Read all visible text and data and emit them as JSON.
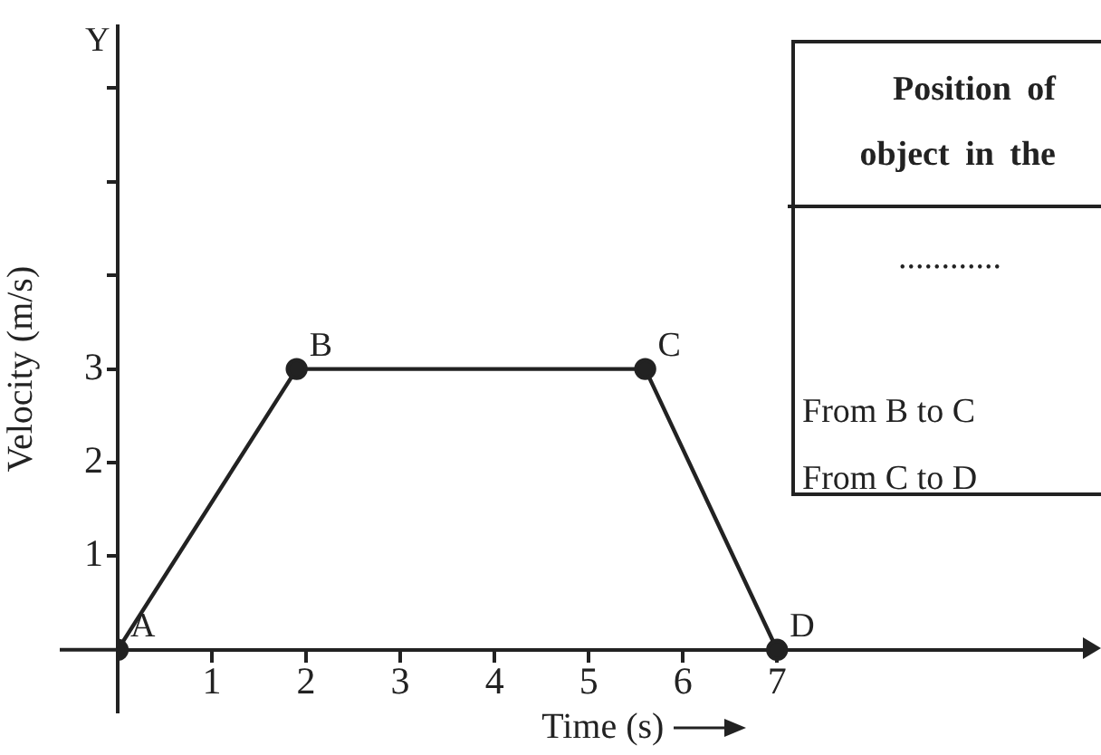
{
  "chart_data": {
    "type": "line",
    "xlabel": "Time (s)",
    "ylabel": "Velocity (m/s)",
    "x": [
      0,
      1.9,
      5.6,
      7
    ],
    "values": [
      0,
      3,
      3,
      0
    ],
    "color": "#222222",
    "marker": "circle",
    "line_style": "solid",
    "xlim": [
      0,
      10.3
    ],
    "ylim": [
      -0.66,
      6.66
    ],
    "xticks": [
      1,
      2,
      3,
      4,
      5,
      6,
      7
    ],
    "yticks": [
      1,
      2,
      3,
      {
        "value": 4,
        "label": null
      },
      {
        "value": 5,
        "label": null
      },
      {
        "value": 6,
        "label": null
      }
    ],
    "grid": false,
    "legend": false,
    "annotations": [
      {
        "text": "A",
        "x": 0,
        "y": 0
      },
      {
        "text": "B",
        "x": 1.9,
        "y": 3
      },
      {
        "text": "C",
        "x": 5.6,
        "y": 3
      },
      {
        "text": "D",
        "x": 7,
        "y": 0
      },
      "Y",
      "Position of object in the",
      "............",
      "From B to C",
      "From C to D"
    ]
  }
}
